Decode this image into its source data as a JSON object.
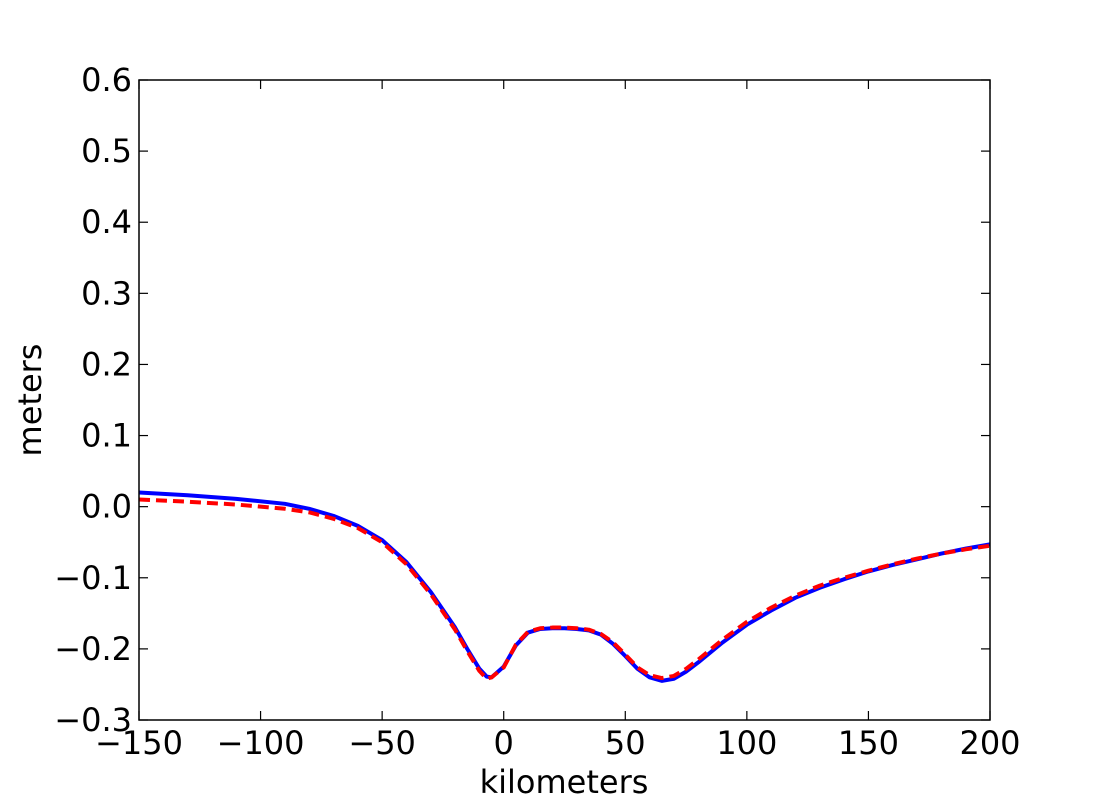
{
  "chart_data": {
    "type": "line",
    "title": "",
    "xlabel": "kilometers",
    "ylabel": "meters",
    "xlim": [
      -150,
      200
    ],
    "ylim": [
      -0.3,
      0.6
    ],
    "xticks": [
      -150,
      -100,
      -50,
      0,
      50,
      100,
      150,
      200
    ],
    "xtick_labels": [
      "−150",
      "−100",
      "−50",
      "0",
      "50",
      "100",
      "150",
      "200"
    ],
    "yticks": [
      -0.3,
      -0.2,
      -0.1,
      0.0,
      0.1,
      0.2,
      0.3,
      0.4,
      0.5,
      0.6
    ],
    "ytick_labels": [
      "−0.3",
      "−0.2",
      "−0.1",
      "0.0",
      "0.1",
      "0.2",
      "0.3",
      "0.4",
      "0.5",
      "0.6"
    ],
    "grid": false,
    "legend": "none",
    "series": [
      {
        "color": "#0000ff",
        "style": "solid",
        "x": [
          -150,
          -130,
          -110,
          -90,
          -80,
          -70,
          -60,
          -50,
          -40,
          -30,
          -20,
          -15,
          -10,
          -7,
          -5,
          0,
          5,
          10,
          15,
          20,
          25,
          30,
          35,
          40,
          45,
          50,
          55,
          60,
          65,
          70,
          75,
          80,
          90,
          100,
          110,
          120,
          130,
          140,
          150,
          160,
          170,
          180,
          190,
          200
        ],
        "y": [
          0.02,
          0.016,
          0.011,
          0.004,
          -0.003,
          -0.013,
          -0.027,
          -0.047,
          -0.078,
          -0.12,
          -0.17,
          -0.2,
          -0.228,
          -0.239,
          -0.24,
          -0.225,
          -0.195,
          -0.177,
          -0.172,
          -0.171,
          -0.171,
          -0.172,
          -0.174,
          -0.18,
          -0.193,
          -0.21,
          -0.228,
          -0.24,
          -0.245,
          -0.242,
          -0.232,
          -0.219,
          -0.191,
          -0.166,
          -0.146,
          -0.128,
          -0.114,
          -0.102,
          -0.091,
          -0.082,
          -0.074,
          -0.066,
          -0.059,
          -0.053
        ]
      },
      {
        "color": "#ff0000",
        "style": "dashed",
        "x": [
          -150,
          -130,
          -110,
          -90,
          -80,
          -70,
          -60,
          -50,
          -40,
          -30,
          -20,
          -15,
          -10,
          -7,
          -5,
          0,
          5,
          10,
          15,
          20,
          25,
          30,
          35,
          40,
          45,
          50,
          55,
          60,
          65,
          70,
          75,
          80,
          90,
          100,
          110,
          120,
          130,
          140,
          150,
          160,
          170,
          180,
          190,
          200
        ],
        "y": [
          0.01,
          0.007,
          0.003,
          -0.003,
          -0.008,
          -0.017,
          -0.03,
          -0.05,
          -0.081,
          -0.123,
          -0.173,
          -0.203,
          -0.231,
          -0.242,
          -0.24,
          -0.226,
          -0.194,
          -0.176,
          -0.171,
          -0.17,
          -0.17,
          -0.171,
          -0.173,
          -0.179,
          -0.191,
          -0.208,
          -0.226,
          -0.237,
          -0.241,
          -0.238,
          -0.228,
          -0.215,
          -0.187,
          -0.162,
          -0.142,
          -0.125,
          -0.111,
          -0.1,
          -0.09,
          -0.081,
          -0.073,
          -0.066,
          -0.06,
          -0.055
        ]
      }
    ]
  }
}
